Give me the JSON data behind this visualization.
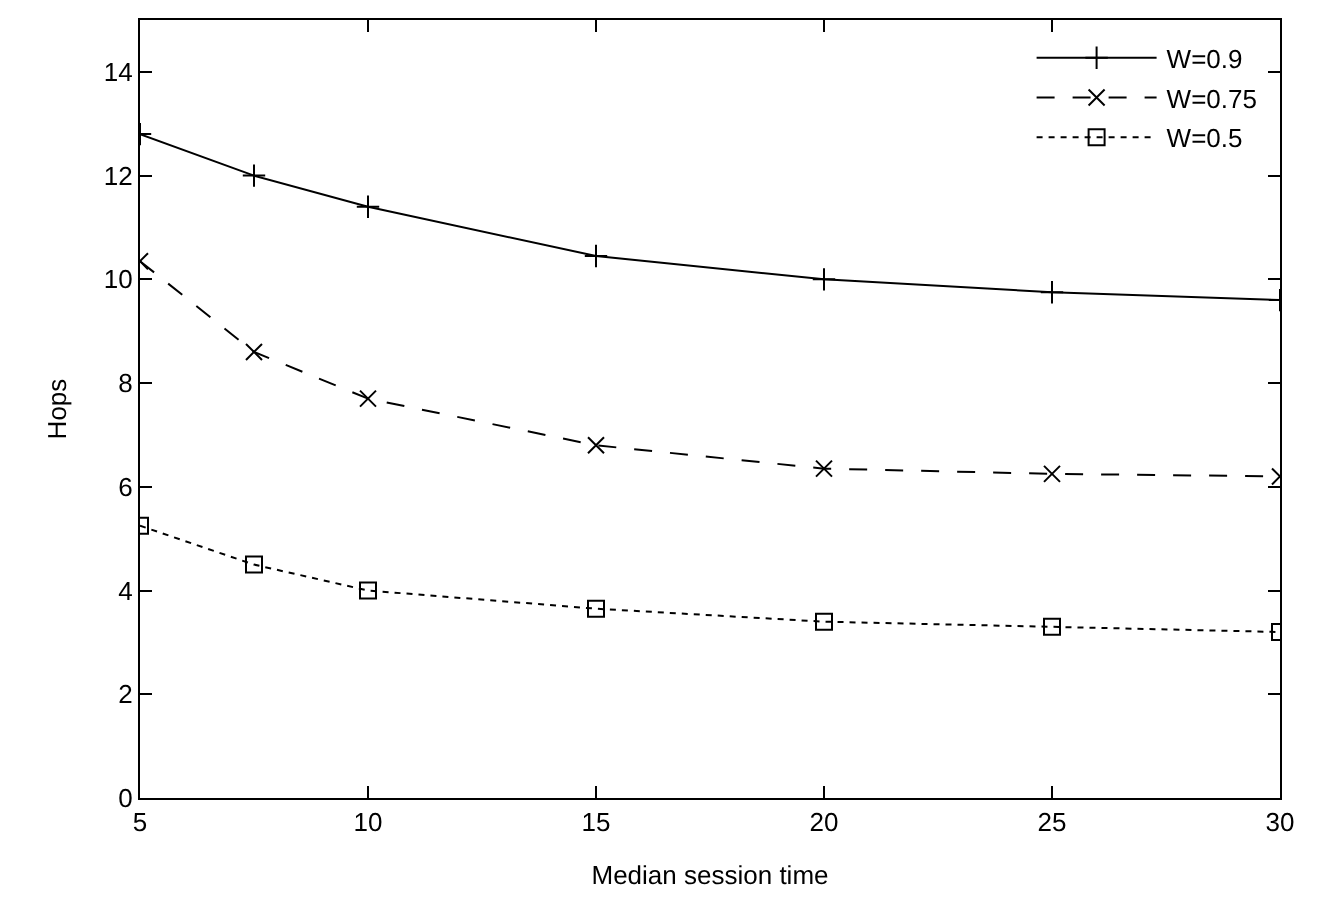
{
  "chart_data": {
    "type": "line",
    "xlabel": "Median session time",
    "ylabel": "Hops",
    "x": [
      5,
      7.5,
      10,
      15,
      20,
      25,
      30
    ],
    "series": [
      {
        "name": "W=0.9",
        "color": "#000000",
        "marker": "cross",
        "line_style": "solid",
        "values": [
          12.8,
          12.0,
          11.4,
          10.45,
          10.0,
          9.75,
          9.6
        ]
      },
      {
        "name": "W=0.75",
        "color": "#000000",
        "marker": "x",
        "line_style": "dashed",
        "values": [
          10.35,
          8.6,
          7.7,
          6.8,
          6.35,
          6.25,
          6.2
        ]
      },
      {
        "name": "W=0.5",
        "color": "#000000",
        "marker": "square",
        "line_style": "dotted",
        "values": [
          5.25,
          4.5,
          4.0,
          3.65,
          3.4,
          3.3,
          3.2
        ]
      }
    ],
    "xlim": [
      5,
      30
    ],
    "xticks": [
      5,
      10,
      15,
      20,
      25,
      30
    ],
    "ylim": [
      0,
      15
    ],
    "yticks": [
      0,
      2,
      4,
      6,
      8,
      10,
      12,
      14
    ],
    "legend": "top right"
  }
}
